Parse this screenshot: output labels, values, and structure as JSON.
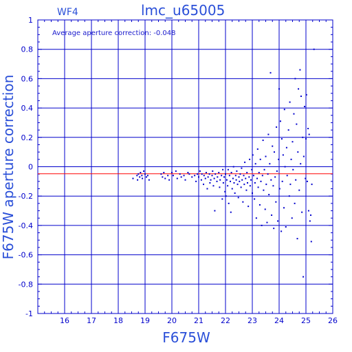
{
  "chart_data": {
    "type": "scatter",
    "panel_label": "WF4",
    "title": "lmc_u65005",
    "xlabel": "F675W",
    "ylabel": "F675W aperture correction",
    "annotation": "Average aperture correction:  -0.048",
    "xlim": [
      15,
      26
    ],
    "ylim": [
      -1,
      1
    ],
    "xticks": [
      16,
      17,
      18,
      19,
      20,
      21,
      22,
      23,
      24,
      25,
      26
    ],
    "yticks": [
      -1,
      -0.8,
      -0.6,
      -0.4,
      -0.2,
      0,
      0.2,
      0.4,
      0.6,
      0.8,
      1
    ],
    "ytick_labels": [
      "-1",
      "-0.8",
      "-0.6",
      "-0.4",
      "-0.2",
      "0",
      "0.2",
      "0.4",
      "0.6",
      "0.8",
      "1"
    ],
    "grid": true,
    "reference_line": {
      "y": -0.048,
      "color": "#ff0000"
    },
    "colors": {
      "points": "#0000cc",
      "grid": "#0000cc",
      "text": "#2a4fd8"
    },
    "points": [
      [
        18.55,
        -0.08
      ],
      [
        18.7,
        -0.06
      ],
      [
        18.72,
        -0.09
      ],
      [
        18.75,
        -0.05
      ],
      [
        18.8,
        -0.07
      ],
      [
        18.83,
        -0.04
      ],
      [
        18.88,
        -0.06
      ],
      [
        18.9,
        -0.08
      ],
      [
        18.95,
        -0.03
      ],
      [
        19.0,
        -0.05
      ],
      [
        19.05,
        -0.07
      ],
      [
        19.1,
        -0.06
      ],
      [
        19.15,
        -0.09
      ],
      [
        19.6,
        -0.05
      ],
      [
        19.65,
        -0.07
      ],
      [
        19.7,
        -0.04
      ],
      [
        19.75,
        -0.08
      ],
      [
        19.85,
        -0.06
      ],
      [
        19.9,
        -0.09
      ],
      [
        20.0,
        -0.04
      ],
      [
        20.05,
        -0.06
      ],
      [
        20.15,
        -0.03
      ],
      [
        20.2,
        -0.08
      ],
      [
        20.3,
        -0.05
      ],
      [
        20.35,
        -0.07
      ],
      [
        20.45,
        -0.06
      ],
      [
        20.5,
        -0.09
      ],
      [
        20.6,
        -0.04
      ],
      [
        20.65,
        -0.05
      ],
      [
        20.75,
        -0.07
      ],
      [
        20.85,
        -0.06
      ],
      [
        20.9,
        -0.1
      ],
      [
        20.95,
        -0.05
      ],
      [
        21.0,
        -0.07
      ],
      [
        21.05,
        -0.03
      ],
      [
        21.1,
        -0.09
      ],
      [
        21.12,
        -0.05
      ],
      [
        21.18,
        -0.12
      ],
      [
        21.2,
        -0.06
      ],
      [
        21.25,
        -0.08
      ],
      [
        21.28,
        -0.04
      ],
      [
        21.32,
        -0.15
      ],
      [
        21.35,
        -0.07
      ],
      [
        21.4,
        -0.05
      ],
      [
        21.42,
        -0.11
      ],
      [
        21.45,
        -0.09
      ],
      [
        21.5,
        -0.06
      ],
      [
        21.52,
        -0.03
      ],
      [
        21.55,
        -0.13
      ],
      [
        21.58,
        -0.08
      ],
      [
        21.6,
        -0.3
      ],
      [
        21.62,
        -0.05
      ],
      [
        21.68,
        -0.1
      ],
      [
        21.7,
        -0.07
      ],
      [
        21.75,
        -0.04
      ],
      [
        21.78,
        -0.14
      ],
      [
        21.8,
        -0.09
      ],
      [
        21.85,
        -0.06
      ],
      [
        21.88,
        -0.22
      ],
      [
        21.9,
        -0.02
      ],
      [
        21.92,
        -0.11
      ],
      [
        21.95,
        -0.07
      ],
      [
        21.98,
        -0.17
      ],
      [
        22.0,
        -0.05
      ],
      [
        22.02,
        -0.2
      ],
      [
        22.05,
        -0.09
      ],
      [
        22.08,
        -0.13
      ],
      [
        22.1,
        -0.02
      ],
      [
        22.12,
        -0.25
      ],
      [
        22.15,
        -0.06
      ],
      [
        22.18,
        -0.1
      ],
      [
        22.2,
        -0.31
      ],
      [
        22.22,
        -0.04
      ],
      [
        22.25,
        -0.15
      ],
      [
        22.28,
        -0.08
      ],
      [
        22.3,
        0.0
      ],
      [
        22.32,
        -0.11
      ],
      [
        22.35,
        -0.18
      ],
      [
        22.38,
        -0.06
      ],
      [
        22.4,
        -0.09
      ],
      [
        22.42,
        -0.03
      ],
      [
        22.45,
        -0.12
      ],
      [
        22.48,
        -0.21
      ],
      [
        22.5,
        -0.07
      ],
      [
        22.52,
        -0.1
      ],
      [
        22.55,
        -0.05
      ],
      [
        22.58,
        -0.14
      ],
      [
        22.6,
        -0.01
      ],
      [
        22.62,
        -0.09
      ],
      [
        22.65,
        -0.24
      ],
      [
        22.68,
        -0.06
      ],
      [
        22.7,
        -0.12
      ],
      [
        22.72,
        0.03
      ],
      [
        22.75,
        -0.08
      ],
      [
        22.78,
        -0.16
      ],
      [
        22.8,
        -0.04
      ],
      [
        22.82,
        -0.11
      ],
      [
        22.85,
        -0.27
      ],
      [
        22.88,
        -0.07
      ],
      [
        22.9,
        0.05
      ],
      [
        22.92,
        -0.13
      ],
      [
        22.95,
        -0.09
      ],
      [
        22.98,
        -0.02
      ],
      [
        23.0,
        -0.18
      ],
      [
        23.02,
        0.08
      ],
      [
        23.05,
        -0.06
      ],
      [
        23.08,
        -0.22
      ],
      [
        23.1,
        -0.11
      ],
      [
        23.12,
        0.02
      ],
      [
        23.15,
        -0.35
      ],
      [
        23.18,
        -0.08
      ],
      [
        23.2,
        0.12
      ],
      [
        23.22,
        -0.14
      ],
      [
        23.25,
        -0.04
      ],
      [
        23.28,
        -0.26
      ],
      [
        23.3,
        0.05
      ],
      [
        23.32,
        -0.1
      ],
      [
        23.35,
        -0.4
      ],
      [
        23.38,
        -0.06
      ],
      [
        23.4,
        0.18
      ],
      [
        23.42,
        -0.16
      ],
      [
        23.45,
        -0.02
      ],
      [
        23.48,
        -0.29
      ],
      [
        23.5,
        0.07
      ],
      [
        23.52,
        -0.12
      ],
      [
        23.55,
        -0.38
      ],
      [
        23.58,
        -0.05
      ],
      [
        23.6,
        0.22
      ],
      [
        23.62,
        -0.19
      ],
      [
        23.65,
        0.02
      ],
      [
        23.68,
        0.64
      ],
      [
        23.7,
        -0.09
      ],
      [
        23.72,
        -0.33
      ],
      [
        23.75,
        0.14
      ],
      [
        23.78,
        -0.13
      ],
      [
        23.8,
        -0.42
      ],
      [
        23.82,
        0.1
      ],
      [
        23.85,
        -0.07
      ],
      [
        23.88,
        -0.24
      ],
      [
        23.9,
        0.27
      ],
      [
        23.92,
        -0.03
      ],
      [
        23.95,
        -0.37
      ],
      [
        23.98,
        0.05
      ],
      [
        24.0,
        0.53
      ],
      [
        24.02,
        -0.15
      ],
      [
        24.05,
        0.31
      ],
      [
        24.08,
        -0.44
      ],
      [
        24.1,
        0.19
      ],
      [
        24.12,
        -0.1
      ],
      [
        24.15,
        0.08
      ],
      [
        24.18,
        -0.28
      ],
      [
        24.2,
        0.39
      ],
      [
        24.22,
        0.0
      ],
      [
        24.25,
        -0.41
      ],
      [
        24.28,
        0.13
      ],
      [
        24.3,
        -0.06
      ],
      [
        24.35,
        0.25
      ],
      [
        24.38,
        -0.2
      ],
      [
        24.4,
        0.44
      ],
      [
        24.42,
        -0.12
      ],
      [
        24.45,
        0.05
      ],
      [
        24.48,
        -0.35
      ],
      [
        24.5,
        0.17
      ],
      [
        24.52,
        -0.02
      ],
      [
        24.55,
        0.36
      ],
      [
        24.58,
        -0.25
      ],
      [
        24.6,
        0.6
      ],
      [
        24.62,
        -0.09
      ],
      [
        24.65,
        0.29
      ],
      [
        24.68,
        -0.49
      ],
      [
        24.7,
        0.1
      ],
      [
        24.72,
        0.53
      ],
      [
        24.75,
        -0.16
      ],
      [
        24.78,
        0.66
      ],
      [
        24.8,
        0.02
      ],
      [
        24.82,
        0.48
      ],
      [
        24.85,
        -0.31
      ],
      [
        24.88,
        0.2
      ],
      [
        24.9,
        -0.75
      ],
      [
        24.92,
        0.07
      ],
      [
        24.95,
        0.41
      ],
      [
        24.98,
        -0.08
      ],
      [
        25.0,
        0.19
      ],
      [
        25.02,
        0.49
      ],
      [
        25.05,
        -0.1
      ],
      [
        25.08,
        0.26
      ],
      [
        25.1,
        -0.3
      ],
      [
        25.12,
        0.22
      ],
      [
        25.15,
        -0.37
      ],
      [
        25.18,
        -0.33
      ],
      [
        25.2,
        -0.51
      ],
      [
        25.22,
        -0.12
      ],
      [
        25.3,
        0.8
      ]
    ]
  }
}
